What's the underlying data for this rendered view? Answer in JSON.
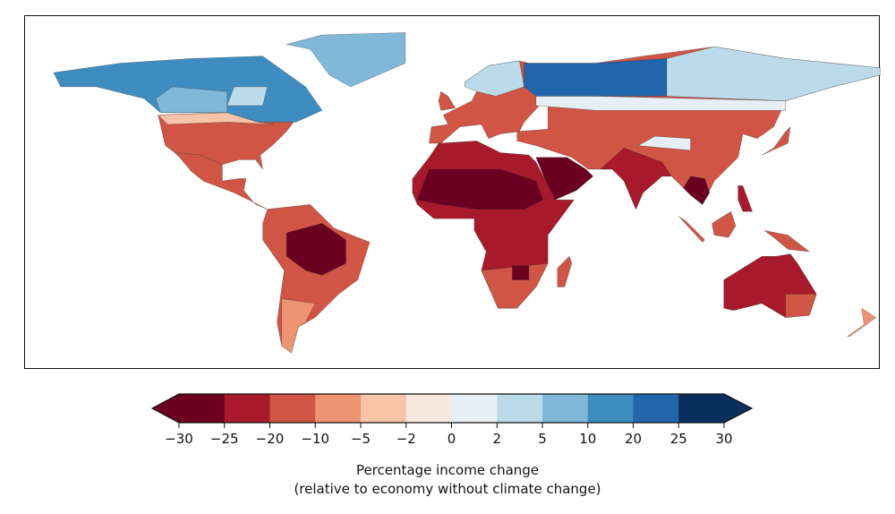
{
  "colorbar": {
    "ticks": [
      "−30",
      "−25",
      "−20",
      "−10",
      "−5",
      "−2",
      "0",
      "2",
      "5",
      "10",
      "20",
      "25",
      "30"
    ],
    "colors": [
      "#6b0020",
      "#a81a2b",
      "#d05545",
      "#ee9473",
      "#f7c4a9",
      "#f9e8df",
      "#e6eff5",
      "#bcdbea",
      "#7fb8d8",
      "#3f8dc0",
      "#2166ac",
      "#0a2f5e"
    ],
    "extend": "both",
    "label_line1": "Percentage income change",
    "label_line2": "(relative to economy without climate change)"
  },
  "map": {
    "projection": "equirectangular",
    "colormap": "RdBu"
  }
}
